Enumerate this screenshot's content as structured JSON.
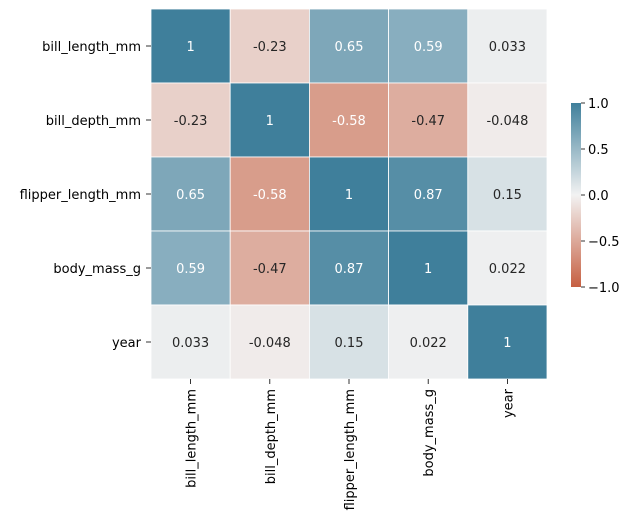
{
  "chart_data": {
    "type": "heatmap",
    "title": "",
    "xlabel": "",
    "ylabel": "",
    "row_labels": [
      "bill_length_mm",
      "bill_depth_mm",
      "flipper_length_mm",
      "body_mass_g",
      "year"
    ],
    "col_labels": [
      "bill_length_mm",
      "bill_depth_mm",
      "flipper_length_mm",
      "body_mass_g",
      "year"
    ],
    "values": [
      [
        1,
        -0.23,
        0.65,
        0.59,
        0.033
      ],
      [
        -0.23,
        1,
        -0.58,
        -0.47,
        -0.048
      ],
      [
        0.65,
        -0.58,
        1,
        0.87,
        0.15
      ],
      [
        0.59,
        -0.47,
        0.87,
        1,
        0.022
      ],
      [
        0.033,
        -0.048,
        0.15,
        0.022,
        1
      ]
    ],
    "cell_labels": [
      [
        "1",
        "-0.23",
        "0.65",
        "0.59",
        "0.033"
      ],
      [
        "-0.23",
        "1",
        "-0.58",
        "-0.47",
        "-0.048"
      ],
      [
        "0.65",
        "-0.58",
        "1",
        "0.87",
        "0.15"
      ],
      [
        "0.59",
        "-0.47",
        "0.87",
        "1",
        "0.022"
      ],
      [
        "0.033",
        "-0.048",
        "0.15",
        "0.022",
        "1"
      ]
    ],
    "vmin": -1,
    "vmax": 1,
    "colormap": {
      "low": "#c65f41",
      "mid": "#f2f2f2",
      "high": "#3f7f9b"
    },
    "colorbar": {
      "ticks": [
        1.0,
        0.5,
        0.0,
        -0.5,
        -1.0
      ],
      "tick_labels": [
        "1.0",
        "0.5",
        "0.0",
        "−0.5",
        "−1.0"
      ]
    },
    "annotation_colors": {
      "dark_text": "#262626",
      "light_text": "#ffffff"
    }
  }
}
